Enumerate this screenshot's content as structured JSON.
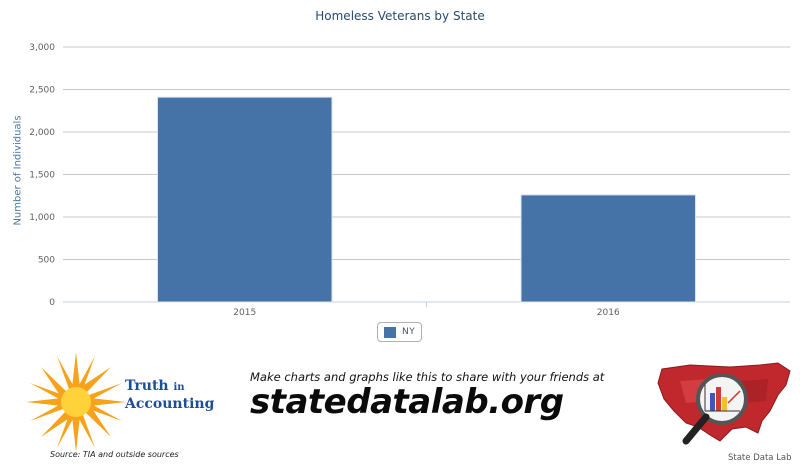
{
  "chart_data": {
    "type": "bar",
    "title": "Homeless Veterans by State",
    "ylabel": "Number of Individuals",
    "xlabel": "",
    "categories": [
      "2015",
      "2016"
    ],
    "series": [
      {
        "name": "NY",
        "values": [
          2410,
          1260
        ],
        "color": "#4572a7"
      }
    ],
    "ylim": [
      0,
      3000
    ],
    "yticks": [
      "0",
      "500",
      "1,000",
      "1,500",
      "2,000",
      "2,500",
      "3,000"
    ],
    "ytick_values": [
      0,
      500,
      1000,
      1500,
      2000,
      2500,
      3000
    ],
    "grid": true,
    "legend_position": "bottom-center"
  },
  "footer": {
    "tia_logo": {
      "line1": "Truth",
      "line1_small": "in",
      "line2": "Accounting"
    },
    "source": "Source: TIA and outside sources",
    "promo_text": "Make charts and graphs like this to share with your friends at",
    "promo_url": "statedatalab.org",
    "logo_caption": "State Data Lab"
  }
}
